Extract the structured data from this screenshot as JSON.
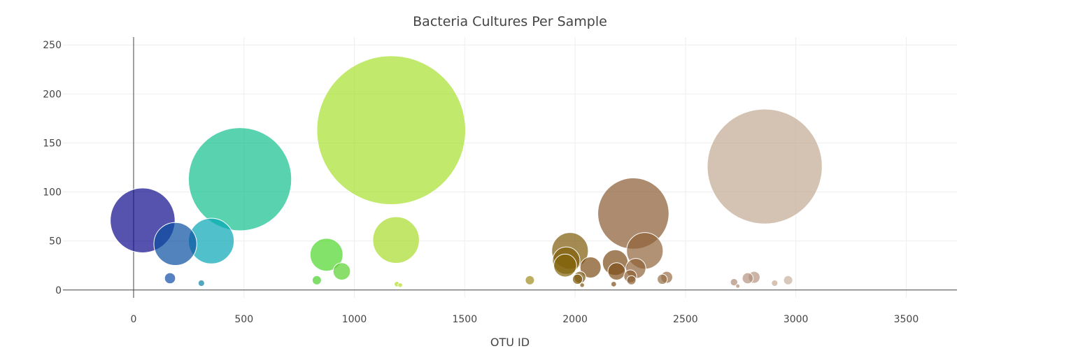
{
  "chart_data": {
    "type": "scatter",
    "title": "Bacteria Cultures Per Sample",
    "xlabel": "OTU ID",
    "ylabel": "",
    "xlim": [
      -320,
      3730
    ],
    "ylim": [
      -8,
      258
    ],
    "xticks": [
      0,
      500,
      1000,
      1500,
      2000,
      2500,
      3000,
      3500
    ],
    "yticks": [
      0,
      50,
      100,
      150,
      200,
      250
    ],
    "grid": true,
    "legend": "none",
    "marker_size": "sample value",
    "opacity": 0.7,
    "colorscale_note": "marker color follows OTU ID",
    "series": [
      {
        "points": [
          {
            "x": 41,
            "y": 71,
            "color": "#0d0a8c"
          },
          {
            "x": 165,
            "y": 12,
            "color": "#104da6"
          },
          {
            "x": 189,
            "y": 47,
            "color": "#0a4ea0"
          },
          {
            "x": 307,
            "y": 7,
            "color": "#0a7fa8"
          },
          {
            "x": 352,
            "y": 50,
            "color": "#06a7b5"
          },
          {
            "x": 482,
            "y": 113,
            "color": "#12bf8e"
          },
          {
            "x": 830,
            "y": 10,
            "color": "#48cf2b"
          },
          {
            "x": 874,
            "y": 36,
            "color": "#4fd52a"
          },
          {
            "x": 943,
            "y": 19,
            "color": "#58d02e"
          },
          {
            "x": 1167,
            "y": 163,
            "color": "#a6e02c"
          },
          {
            "x": 1189,
            "y": 51,
            "color": "#a8dc2a"
          },
          {
            "x": 1193,
            "y": 6,
            "color": "#b0dc2e"
          },
          {
            "x": 1208,
            "y": 5,
            "color": "#b8dc30"
          },
          {
            "x": 1795,
            "y": 10,
            "color": "#9e8c1e"
          },
          {
            "x": 1977,
            "y": 40,
            "color": "#7e5a08"
          },
          {
            "x": 1960,
            "y": 30,
            "color": "#80600a"
          },
          {
            "x": 1955,
            "y": 25,
            "color": "#82640c"
          },
          {
            "x": 2011,
            "y": 11,
            "color": "#7c5a0c"
          },
          {
            "x": 2022,
            "y": 13,
            "color": "#7a560e"
          },
          {
            "x": 2032,
            "y": 5,
            "color": "#7a560e"
          },
          {
            "x": 2070,
            "y": 23,
            "color": "#7c4c16"
          },
          {
            "x": 2182,
            "y": 28,
            "color": "#7c4c18"
          },
          {
            "x": 2188,
            "y": 19,
            "color": "#7e4e1a"
          },
          {
            "x": 2175,
            "y": 6,
            "color": "#7e4e1a"
          },
          {
            "x": 2264,
            "y": 78,
            "color": "#8a5a30"
          },
          {
            "x": 2250,
            "y": 14,
            "color": "#8c5e32"
          },
          {
            "x": 2255,
            "y": 10,
            "color": "#8c5e32"
          },
          {
            "x": 2275,
            "y": 22,
            "color": "#8e6238"
          },
          {
            "x": 2316,
            "y": 40,
            "color": "#90643a"
          },
          {
            "x": 2395,
            "y": 11,
            "color": "#966e46"
          },
          {
            "x": 2415,
            "y": 13,
            "color": "#986e48"
          },
          {
            "x": 2720,
            "y": 8,
            "color": "#b08c74"
          },
          {
            "x": 2737,
            "y": 4,
            "color": "#b08c74"
          },
          {
            "x": 2782,
            "y": 12,
            "color": "#b49280"
          },
          {
            "x": 2811,
            "y": 13,
            "color": "#b69680"
          },
          {
            "x": 2859,
            "y": 126,
            "color": "#c2aa92"
          },
          {
            "x": 2904,
            "y": 7,
            "color": "#c4aa94"
          },
          {
            "x": 2965,
            "y": 10,
            "color": "#c8b09e"
          }
        ]
      }
    ]
  }
}
